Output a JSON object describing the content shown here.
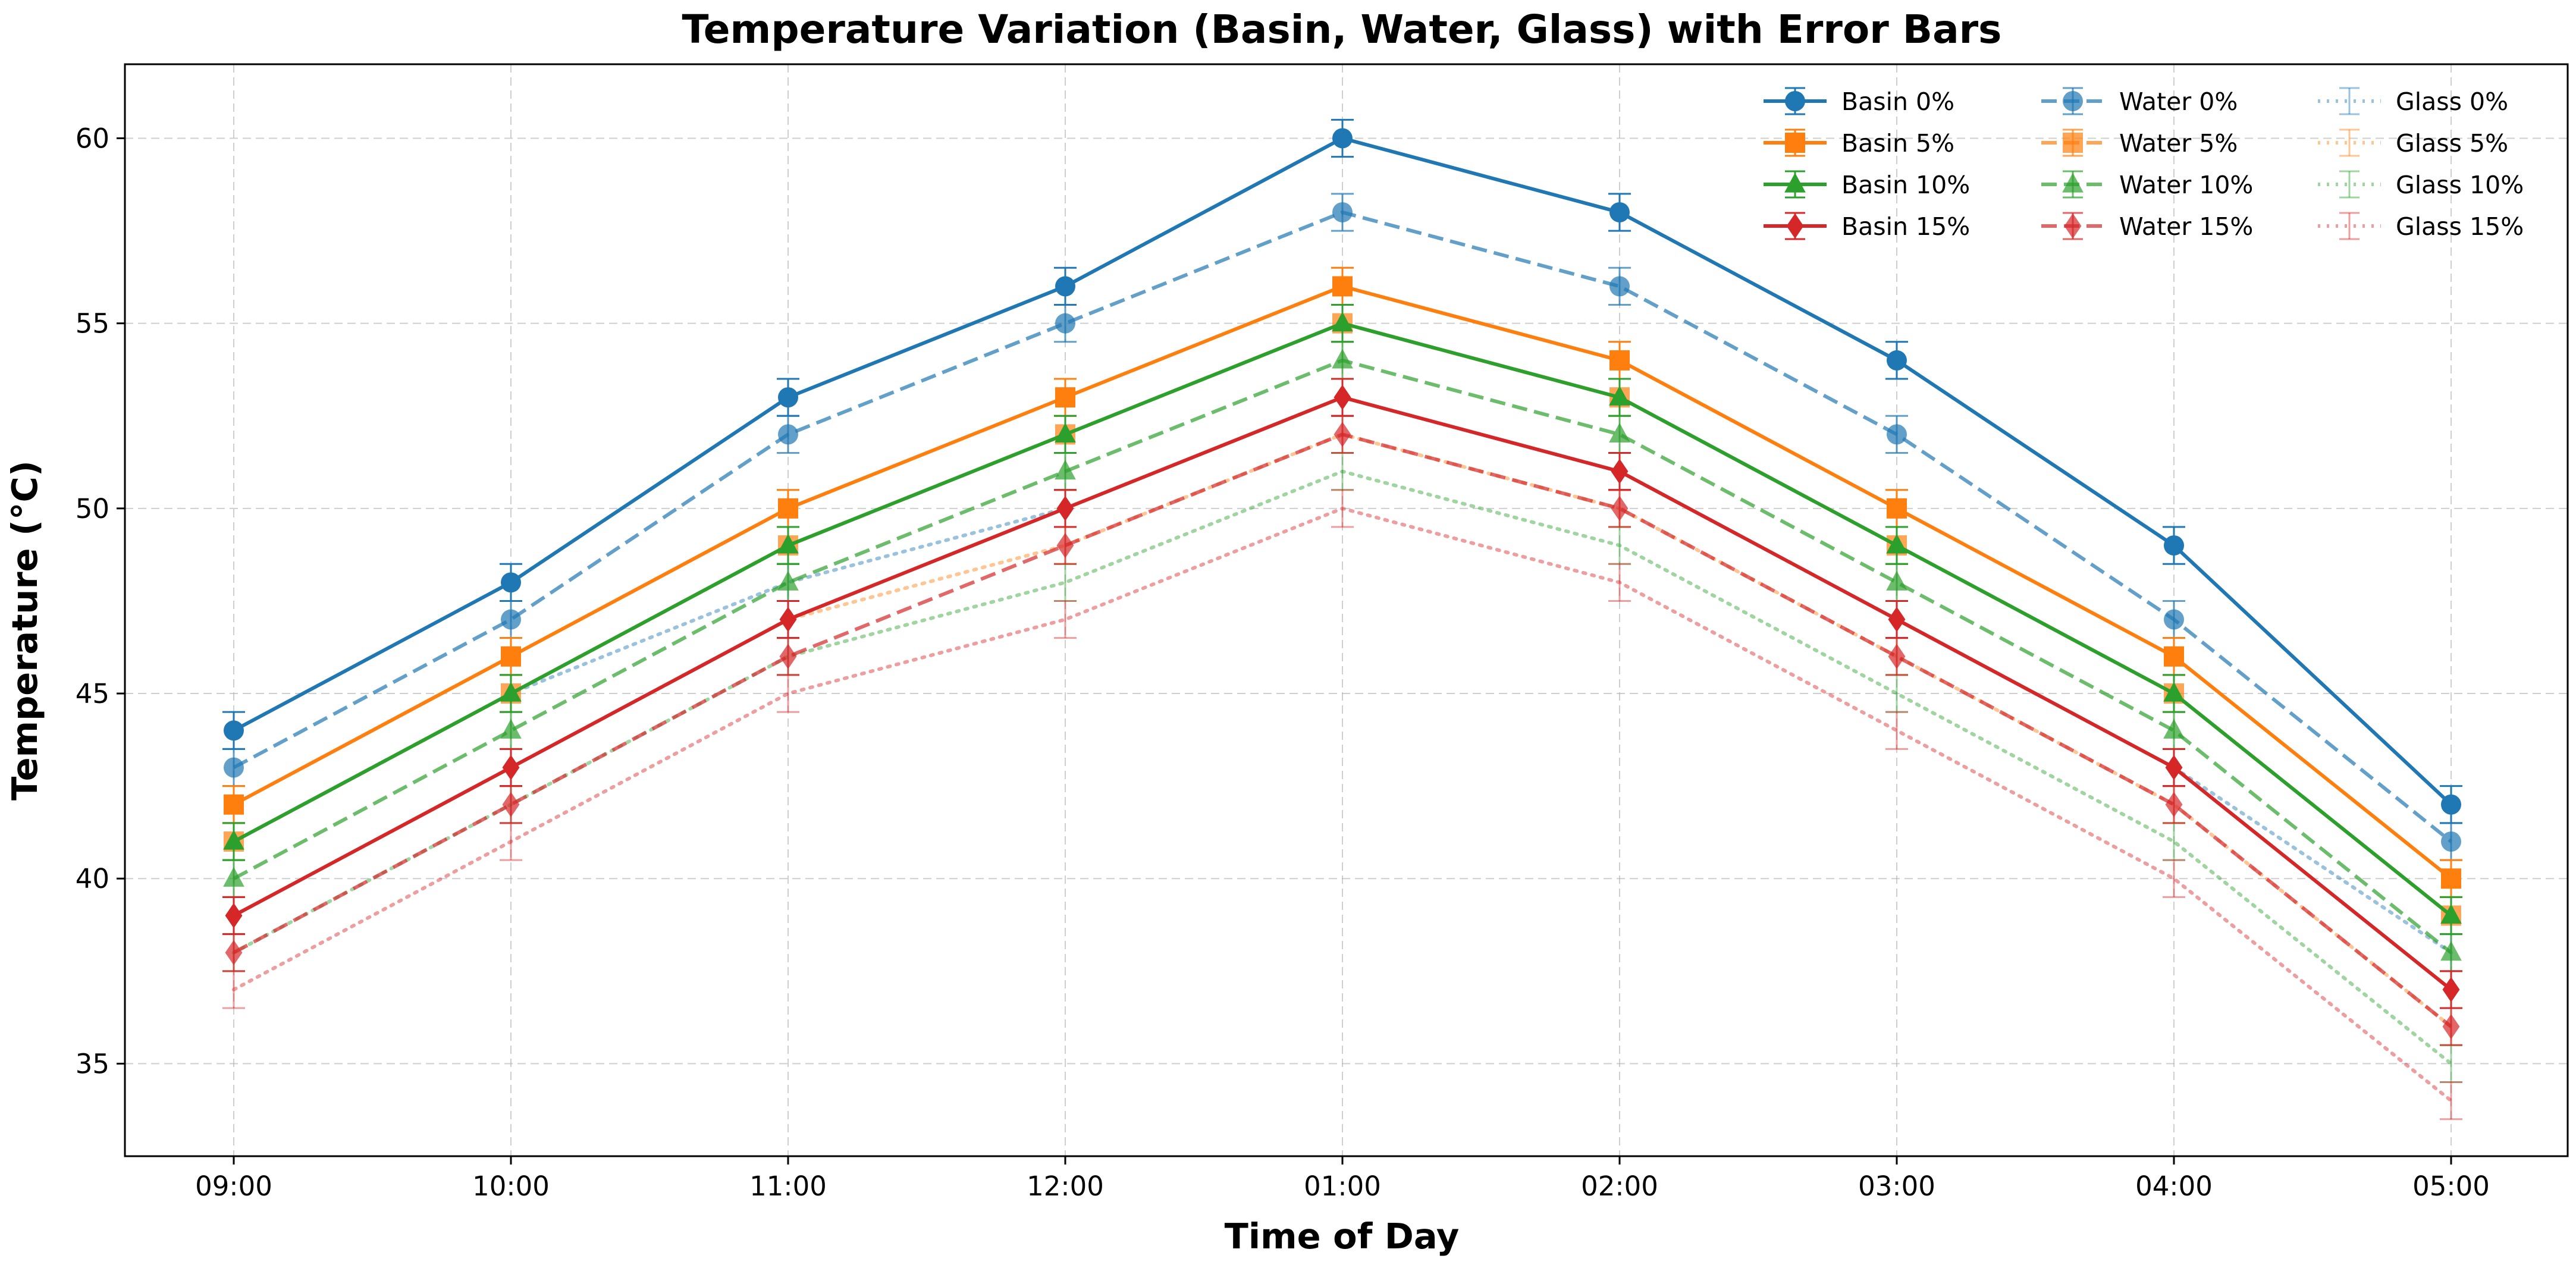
{
  "chart_data": {
    "type": "line",
    "title": "Temperature Variation (Basin, Water, Glass) with Error Bars",
    "xlabel": "Time of Day",
    "ylabel": "Temperature (°C)",
    "categories": [
      "09:00",
      "10:00",
      "11:00",
      "12:00",
      "01:00",
      "02:00",
      "03:00",
      "04:00",
      "05:00"
    ],
    "ylim": [
      32.5,
      62.0
    ],
    "yticks": [
      35,
      40,
      45,
      50,
      55,
      60
    ],
    "grid": true,
    "legend_position": "top-right",
    "series": [
      {
        "name": "Basin 0%",
        "group": "basin",
        "color": "#1f77b4",
        "marker": "circle",
        "values": [
          44,
          48,
          53,
          56,
          60,
          58,
          54,
          49,
          42
        ]
      },
      {
        "name": "Basin 5%",
        "group": "basin",
        "color": "#ff7f0e",
        "marker": "square",
        "values": [
          42,
          46,
          50,
          53,
          56,
          54,
          50,
          46,
          40
        ]
      },
      {
        "name": "Basin 10%",
        "group": "basin",
        "color": "#2ca02c",
        "marker": "triangle",
        "values": [
          41,
          45,
          49,
          52,
          55,
          53,
          49,
          45,
          39
        ]
      },
      {
        "name": "Basin 15%",
        "group": "basin",
        "color": "#d62728",
        "marker": "diamond",
        "values": [
          39,
          43,
          47,
          50,
          53,
          51,
          47,
          43,
          37
        ]
      },
      {
        "name": "Water 0%",
        "group": "water",
        "color": "#1f77b4",
        "marker": "circle",
        "values": [
          43,
          47,
          52,
          55,
          58,
          56,
          52,
          47,
          41
        ]
      },
      {
        "name": "Water 5%",
        "group": "water",
        "color": "#ff7f0e",
        "marker": "square",
        "values": [
          41,
          45,
          49,
          52,
          55,
          53,
          49,
          45,
          39
        ]
      },
      {
        "name": "Water 10%",
        "group": "water",
        "color": "#2ca02c",
        "marker": "triangle",
        "values": [
          40,
          44,
          48,
          51,
          54,
          52,
          48,
          44,
          38
        ]
      },
      {
        "name": "Water 15%",
        "group": "water",
        "color": "#d62728",
        "marker": "diamond",
        "values": [
          38,
          42,
          46,
          49,
          52,
          50,
          46,
          42,
          36
        ]
      },
      {
        "name": "Glass 0%",
        "group": "glass",
        "color": "#1f77b4",
        "marker": "none",
        "values": [
          41,
          45,
          48,
          50,
          53,
          51,
          47,
          43,
          38
        ]
      },
      {
        "name": "Glass 5%",
        "group": "glass",
        "color": "#ff7f0e",
        "marker": "none",
        "values": [
          39,
          43,
          47,
          49,
          52,
          50,
          46,
          42,
          36
        ]
      },
      {
        "name": "Glass 10%",
        "group": "glass",
        "color": "#2ca02c",
        "marker": "none",
        "values": [
          38,
          42,
          46,
          48,
          51,
          49,
          45,
          41,
          35
        ]
      },
      {
        "name": "Glass 15%",
        "group": "glass",
        "color": "#d62728",
        "marker": "none",
        "values": [
          37,
          41,
          45,
          47,
          50,
          48,
          44,
          40,
          34
        ]
      }
    ],
    "error_bar": 0.5
  }
}
